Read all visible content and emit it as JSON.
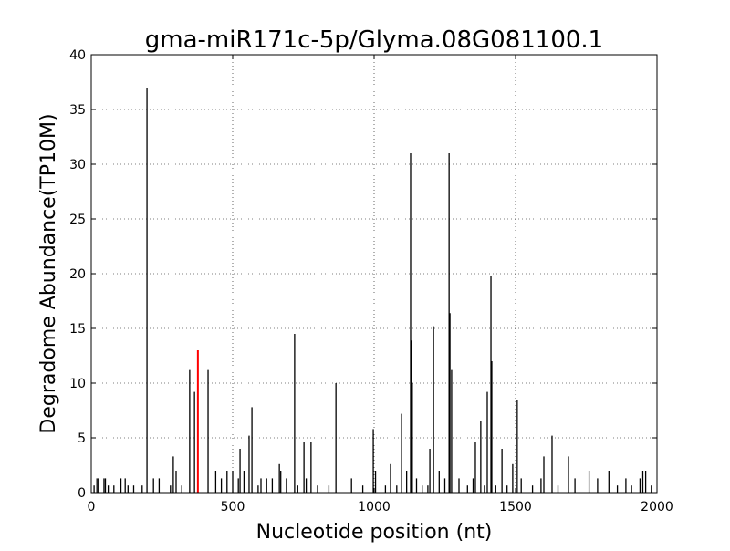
{
  "chart_data": {
    "type": "stem",
    "title": "gma-miR171c-5p/Glyma.08G081100.1",
    "xlabel": "Nucleotide position (nt)",
    "ylabel": "Degradome Abundance(TP10M)",
    "xlim": [
      0,
      2000
    ],
    "xticks": [
      0,
      500,
      1000,
      1500,
      2000
    ],
    "ylim": [
      0,
      40
    ],
    "yticks": [
      0,
      5,
      10,
      15,
      20,
      25,
      30,
      35,
      40
    ],
    "grid": true,
    "series": [
      {
        "color": "#000000",
        "x": [
          197,
          348,
          365,
          413,
          526,
          558,
          568,
          719,
          865,
          997,
          1058,
          1097,
          1129,
          1132,
          1135,
          1197,
          1210,
          1265,
          1268,
          1274,
          1358,
          1377,
          1400,
          1413,
          1416,
          1452,
          1506,
          1600,
          1629,
          1687,
          290,
          752,
          777,
          665,
          1490,
          10,
          20,
          25,
          45,
          50,
          60,
          80,
          105,
          120,
          130,
          150,
          180,
          220,
          240,
          280,
          300,
          320,
          440,
          460,
          480,
          500,
          520,
          540,
          590,
          600,
          620,
          640,
          670,
          690,
          730,
          760,
          800,
          840,
          920,
          960,
          1005,
          1040,
          1080,
          1115,
          1150,
          1170,
          1190,
          1230,
          1250,
          1300,
          1330,
          1350,
          1390,
          1430,
          1470,
          1520,
          1560,
          1590,
          1650,
          1710,
          1760,
          1790,
          1830,
          1860,
          1890,
          1910,
          1940,
          1950,
          1960,
          1980
        ],
        "values": [
          37,
          11.2,
          9.2,
          11.2,
          4,
          5.2,
          7.8,
          14.5,
          10,
          5.8,
          2.6,
          7.2,
          31,
          13.9,
          10,
          4,
          15.2,
          31,
          16.4,
          11.2,
          4.6,
          6.5,
          9.2,
          19.8,
          12,
          4,
          8.5,
          3.3,
          5.2,
          3.3,
          3.3,
          4.6,
          4.6,
          2.6,
          2.6,
          0.65,
          1.3,
          1.3,
          1.3,
          1.3,
          0.65,
          0.65,
          1.3,
          1.3,
          0.65,
          0.65,
          0.65,
          1.3,
          1.3,
          0.65,
          2,
          0.65,
          2,
          1.3,
          2,
          2,
          1.3,
          2,
          0.65,
          1.3,
          1.3,
          1.3,
          2,
          1.3,
          0.65,
          1.3,
          0.65,
          0.65,
          1.3,
          0.65,
          2,
          0.65,
          0.65,
          2,
          1.3,
          0.65,
          0.65,
          2,
          1.3,
          1.3,
          0.65,
          1.3,
          0.65,
          0.65,
          0.65,
          1.3,
          0.65,
          1.3,
          0.65,
          1.3,
          2,
          1.3,
          2,
          0.65,
          1.3,
          0.65,
          1.3,
          2,
          2,
          0.65
        ]
      },
      {
        "color": "#ff0000",
        "x": [
          377
        ],
        "values": [
          13
        ]
      }
    ]
  }
}
